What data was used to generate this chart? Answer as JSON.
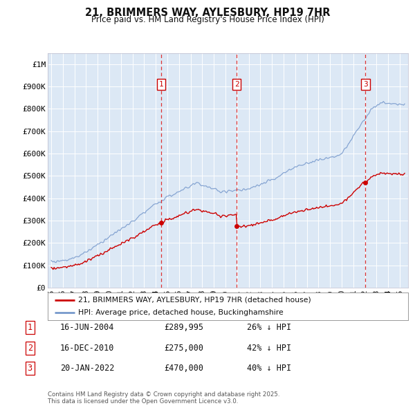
{
  "title": "21, BRIMMERS WAY, AYLESBURY, HP19 7HR",
  "subtitle": "Price paid vs. HM Land Registry's House Price Index (HPI)",
  "background_color": "#ffffff",
  "plot_bg_color": "#dce8f5",
  "grid_color": "#ffffff",
  "ylim": [
    0,
    1050000
  ],
  "yticks": [
    0,
    100000,
    200000,
    300000,
    400000,
    500000,
    600000,
    700000,
    800000,
    900000,
    1000000
  ],
  "ytick_labels": [
    "£0",
    "£100K",
    "£200K",
    "£300K",
    "£400K",
    "£500K",
    "£600K",
    "£700K",
    "£800K",
    "£900K",
    "£1M"
  ],
  "xlim_start": 1994.7,
  "xlim_end": 2025.7,
  "xtick_years": [
    1995,
    1996,
    1997,
    1998,
    1999,
    2000,
    2001,
    2002,
    2003,
    2004,
    2005,
    2006,
    2007,
    2008,
    2009,
    2010,
    2011,
    2012,
    2013,
    2014,
    2015,
    2016,
    2017,
    2018,
    2019,
    2020,
    2021,
    2022,
    2023,
    2024,
    2025
  ],
  "xtick_labels": [
    "95",
    "96",
    "97",
    "98",
    "99",
    "00",
    "01",
    "02",
    "03",
    "04",
    "05",
    "06",
    "07",
    "08",
    "09",
    "10",
    "11",
    "12",
    "13",
    "14",
    "15",
    "16",
    "17",
    "18",
    "19",
    "20",
    "21",
    "22",
    "23",
    "24",
    "25"
  ],
  "sale_dates": [
    2004.46,
    2010.96,
    2022.05
  ],
  "sale_prices": [
    289995,
    275000,
    470000
  ],
  "sale_labels": [
    "1",
    "2",
    "3"
  ],
  "sale_date_labels": [
    "16-JUN-2004",
    "16-DEC-2010",
    "20-JAN-2022"
  ],
  "sale_price_labels": [
    "£289,995",
    "£275,000",
    "£470,000"
  ],
  "sale_discount_labels": [
    "26% ↓ HPI",
    "42% ↓ HPI",
    "40% ↓ HPI"
  ],
  "red_line_color": "#cc0000",
  "blue_line_color": "#7799cc",
  "vline_color": "#dd3333",
  "marker_color": "#cc0000",
  "legend_label_red": "21, BRIMMERS WAY, AYLESBURY, HP19 7HR (detached house)",
  "legend_label_blue": "HPI: Average price, detached house, Buckinghamshire",
  "footer": "Contains HM Land Registry data © Crown copyright and database right 2025.\nThis data is licensed under the Open Government Licence v3.0."
}
